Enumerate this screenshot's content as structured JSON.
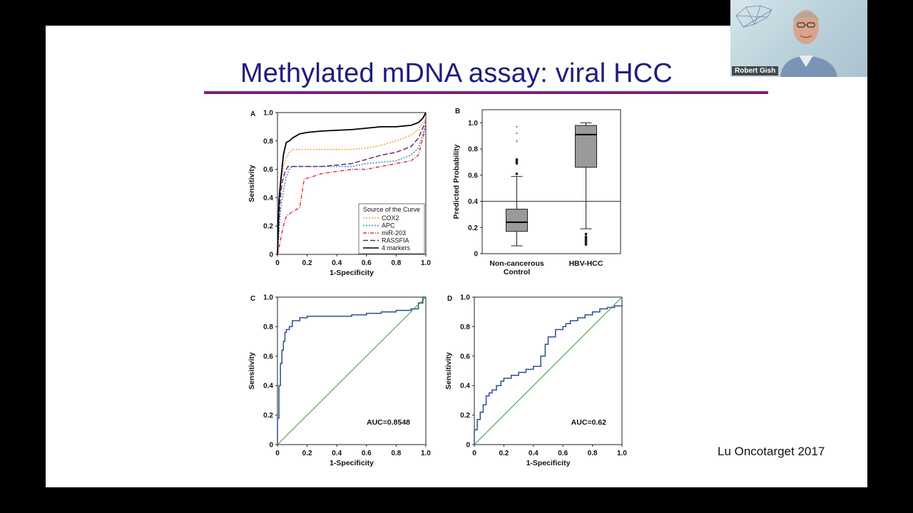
{
  "slide": {
    "title": "Methylated mDNA assay: viral HCC",
    "citation": "Lu Oncotarget 2017",
    "accent_color": "#7c1f7e",
    "title_color": "#1d1d7e"
  },
  "video": {
    "participant_name": "Robert Gish",
    "icons": [
      "person-silhouette-icon",
      "liver-logo-icon"
    ]
  },
  "chart_data": [
    {
      "panel": "A",
      "type": "line",
      "xlabel": "1-Specificity",
      "ylabel": "Sensitivity",
      "xlim": [
        0,
        1
      ],
      "ylim": [
        0,
        1
      ],
      "xticks": [
        "0",
        "0.2",
        "0.4",
        "0.6",
        "0.8",
        "1.0"
      ],
      "yticks": [
        "0",
        "0.2",
        "0.4",
        "0.6",
        "0.8",
        "1.0"
      ],
      "legend": {
        "title": "Source of the Curve",
        "placement": "bottom-right"
      },
      "series": [
        {
          "name": "COX2",
          "color": "#e8a033",
          "style": "dotted",
          "x": [
            0,
            0.01,
            0.02,
            0.03,
            0.04,
            0.06,
            0.08,
            0.1,
            0.2,
            0.3,
            0.5,
            0.6,
            0.7,
            0.8,
            0.9,
            0.95,
            1.0
          ],
          "y": [
            0,
            0.3,
            0.45,
            0.55,
            0.62,
            0.68,
            0.72,
            0.74,
            0.74,
            0.74,
            0.74,
            0.75,
            0.77,
            0.8,
            0.84,
            0.88,
            0.96
          ]
        },
        {
          "name": "APC",
          "color": "#3a86c8",
          "style": "dotted",
          "x": [
            0,
            0.02,
            0.04,
            0.06,
            0.08,
            0.1,
            0.3,
            0.5,
            0.6,
            0.7,
            0.8,
            0.9,
            0.95,
            1.0
          ],
          "y": [
            0,
            0.3,
            0.45,
            0.55,
            0.6,
            0.62,
            0.62,
            0.62,
            0.64,
            0.65,
            0.66,
            0.7,
            0.75,
            0.92
          ]
        },
        {
          "name": "miR-203",
          "color": "#d9363e",
          "style": "dashdot",
          "x": [
            0,
            0.01,
            0.02,
            0.04,
            0.06,
            0.1,
            0.15,
            0.18,
            0.3,
            0.5,
            0.6,
            0.7,
            0.8,
            0.9,
            0.95,
            1.0
          ],
          "y": [
            0,
            0.04,
            0.1,
            0.2,
            0.27,
            0.3,
            0.33,
            0.53,
            0.57,
            0.6,
            0.6,
            0.62,
            0.64,
            0.66,
            0.7,
            0.9
          ]
        },
        {
          "name": "RASSFIA",
          "color": "#6a2f6e",
          "style": "dashed",
          "x": [
            0,
            0.01,
            0.02,
            0.03,
            0.05,
            0.07,
            0.3,
            0.5,
            0.6,
            0.7,
            0.8,
            0.9,
            0.95,
            1.0
          ],
          "y": [
            0,
            0.25,
            0.4,
            0.5,
            0.58,
            0.62,
            0.62,
            0.64,
            0.67,
            0.7,
            0.72,
            0.76,
            0.82,
            0.94
          ]
        },
        {
          "name": "4 markers",
          "color": "#000000",
          "style": "solid",
          "x": [
            0,
            0.01,
            0.02,
            0.03,
            0.04,
            0.05,
            0.06,
            0.08,
            0.1,
            0.15,
            0.2,
            0.3,
            0.5,
            0.6,
            0.7,
            0.8,
            0.9,
            0.95,
            0.98,
            1.0
          ],
          "y": [
            0,
            0.38,
            0.5,
            0.6,
            0.7,
            0.75,
            0.79,
            0.8,
            0.82,
            0.85,
            0.86,
            0.87,
            0.88,
            0.89,
            0.9,
            0.9,
            0.91,
            0.93,
            0.96,
            1.0
          ]
        }
      ]
    },
    {
      "panel": "B",
      "type": "box",
      "ylabel": "Predicted Probability",
      "ylim": [
        0,
        1.1
      ],
      "yticks": [
        "0",
        "0.2",
        "0.4",
        "0.6",
        "0.8",
        "1.0"
      ],
      "categories": [
        "Non-cancerous Control",
        "HBV-HCC"
      ],
      "category_lines": [
        [
          "Non-cancerous",
          "Control"
        ],
        [
          "HBV-HCC"
        ]
      ],
      "reference_line": 0.4,
      "boxes": [
        {
          "min": 0.06,
          "q1": 0.17,
          "median": 0.24,
          "q3": 0.34,
          "max": 0.59,
          "outliers": [
            0.61,
            0.69,
            0.7,
            0.71,
            0.72,
            0.86,
            0.92,
            0.97
          ]
        },
        {
          "min": 0.19,
          "q1": 0.66,
          "median": 0.91,
          "q3": 0.98,
          "max": 1.0,
          "outliers": [
            0.15,
            0.13,
            0.12,
            0.11,
            0.1,
            0.09,
            0.08,
            0.07
          ]
        }
      ]
    },
    {
      "panel": "C",
      "type": "line",
      "xlabel": "1-Specificity",
      "ylabel": "Sensitivity",
      "xlim": [
        0,
        1
      ],
      "ylim": [
        0,
        1
      ],
      "xticks": [
        "0",
        "0.2",
        "0.4",
        "0.6",
        "0.8",
        "1.0"
      ],
      "yticks": [
        "0",
        "0.2",
        "0.4",
        "0.6",
        "0.8",
        "1.0"
      ],
      "annotation": "AUC=0.8548",
      "series": [
        {
          "color": "#2f4e8c",
          "style": "step",
          "x": [
            0,
            0.01,
            0.02,
            0.03,
            0.04,
            0.05,
            0.06,
            0.08,
            0.1,
            0.15,
            0.2,
            0.3,
            0.4,
            0.5,
            0.6,
            0.7,
            0.8,
            0.9,
            0.95,
            0.98,
            1.0
          ],
          "y": [
            0,
            0.18,
            0.4,
            0.55,
            0.64,
            0.7,
            0.76,
            0.78,
            0.8,
            0.84,
            0.86,
            0.87,
            0.87,
            0.87,
            0.88,
            0.89,
            0.9,
            0.91,
            0.92,
            0.96,
            1.0
          ]
        },
        {
          "color": "#3a9a3a",
          "style": "solid",
          "x": [
            0,
            1
          ],
          "y": [
            0,
            1
          ]
        }
      ]
    },
    {
      "panel": "D",
      "type": "line",
      "xlabel": "1-Specificity",
      "ylabel": "Sensitivity",
      "xlim": [
        0,
        1
      ],
      "ylim": [
        0,
        1
      ],
      "xticks": [
        "0",
        "0.2",
        "0.4",
        "0.6",
        "0.8",
        "1.0"
      ],
      "yticks": [
        "0",
        "0.2",
        "0.4",
        "0.6",
        "0.8",
        "1.0"
      ],
      "annotation": "AUC=0.62",
      "series": [
        {
          "color": "#2f4e8c",
          "style": "step",
          "x": [
            0,
            0.02,
            0.04,
            0.06,
            0.08,
            0.1,
            0.12,
            0.15,
            0.18,
            0.2,
            0.25,
            0.3,
            0.35,
            0.4,
            0.45,
            0.48,
            0.5,
            0.55,
            0.6,
            0.62,
            0.65,
            0.7,
            0.75,
            0.8,
            0.85,
            0.9,
            0.95,
            1.0
          ],
          "y": [
            0,
            0.1,
            0.17,
            0.22,
            0.27,
            0.33,
            0.35,
            0.37,
            0.4,
            0.43,
            0.45,
            0.47,
            0.49,
            0.51,
            0.53,
            0.6,
            0.68,
            0.73,
            0.78,
            0.8,
            0.82,
            0.84,
            0.86,
            0.88,
            0.9,
            0.92,
            0.93,
            0.94
          ]
        },
        {
          "color": "#3a9a3a",
          "style": "solid",
          "x": [
            0,
            1
          ],
          "y": [
            0,
            1
          ]
        }
      ]
    }
  ]
}
